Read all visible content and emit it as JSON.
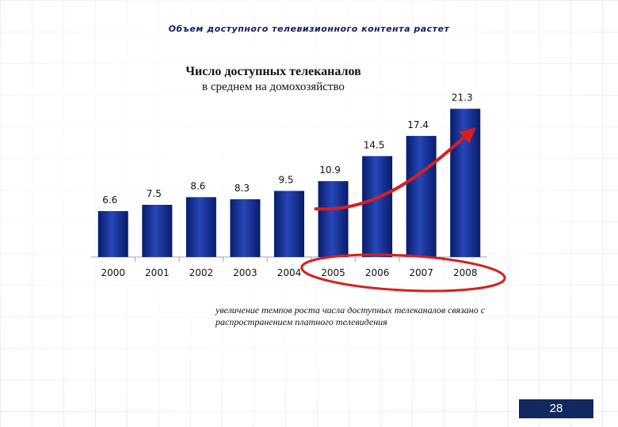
{
  "header": {
    "title": "Объем доступного телевизионного контента растет"
  },
  "chart_data": {
    "type": "bar",
    "title": "Число доступных телеканалов",
    "subtitle": "в среднем на домохозяйство",
    "categories": [
      "2000",
      "2001",
      "2002",
      "2003",
      "2004",
      "2005",
      "2006",
      "2007",
      "2008"
    ],
    "values": [
      6.6,
      7.5,
      8.6,
      8.3,
      9.5,
      10.9,
      14.5,
      17.4,
      21.3
    ],
    "value_labels": [
      "6.6",
      "7.5",
      "8.6",
      "8.3",
      "9.5",
      "10.9",
      "14.5",
      "17.4",
      "21.3"
    ],
    "ylim": [
      0,
      22
    ],
    "grid": false,
    "bar_color": "#0d2a8c",
    "annotation_color": "#d81e1e"
  },
  "note": {
    "text": "увеличение темпов роста числа доступных телеканалов связано с распространением платного телевидения"
  },
  "page": {
    "number": "28"
  }
}
